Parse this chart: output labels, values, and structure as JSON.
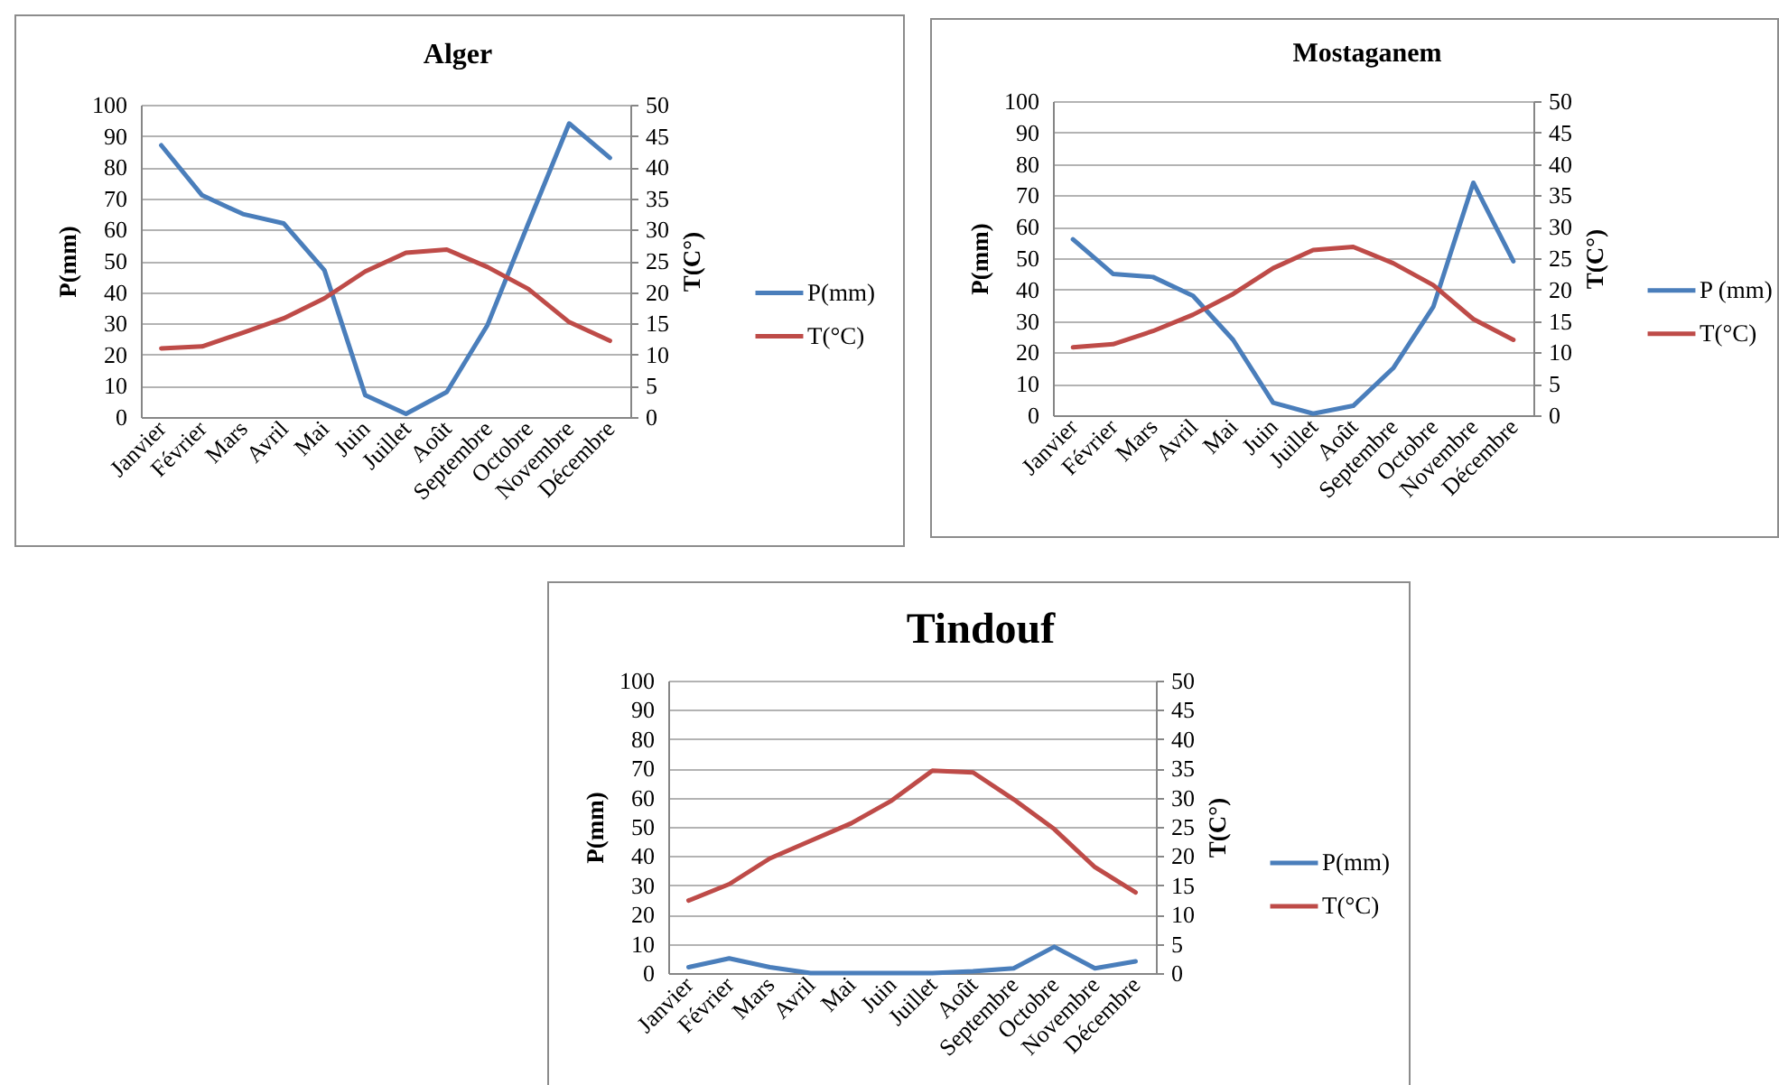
{
  "chart_data": [
    {
      "type": "line",
      "title": "Alger",
      "ylabel": "P(mm)",
      "y2label": "T(C°)",
      "categories": [
        "Janvier",
        "Février",
        "Mars",
        "Avril",
        "Mai",
        "Juin",
        "Juillet",
        "Août",
        "Septembre",
        "Octobre",
        "Novembre",
        "Décembre"
      ],
      "series": [
        {
          "name": "P(mm)",
          "color": "#4a7ebb",
          "values": [
            87,
            71,
            65,
            62,
            47,
            7,
            1,
            8,
            29.5,
            62,
            94,
            83
          ]
        },
        {
          "name": "T(°C)",
          "color": "#be4b48",
          "axis": "y2",
          "values": [
            11,
            11.3,
            13.5,
            15.8,
            19,
            23.3,
            26.3,
            26.8,
            24,
            20.5,
            15.2,
            12.2
          ]
        }
      ],
      "ylim": [
        0,
        100
      ],
      "yticks": [
        0,
        10,
        20,
        30,
        40,
        50,
        60,
        70,
        80,
        90,
        100
      ],
      "y2lim": [
        0,
        50
      ],
      "y2ticks": [
        0,
        5,
        10,
        15,
        20,
        25,
        30,
        35,
        40,
        45,
        50
      ],
      "grid": "y",
      "legend": "right"
    },
    {
      "type": "line",
      "title": "Mostaganem",
      "ylabel": "P(mm)",
      "y2label": "T(C°)",
      "categories": [
        "Janvier",
        "Février",
        "Mars",
        "Avril",
        "Mai",
        "Juin",
        "Juillet",
        "Août",
        "Septembre",
        "Octobre",
        "Novembre",
        "Décembre"
      ],
      "series": [
        {
          "name": "P (mm)",
          "color": "#4a7ebb",
          "values": [
            56,
            45,
            44,
            38,
            24,
            4,
            0.5,
            3,
            15,
            34.5,
            74,
            49
          ]
        },
        {
          "name": "T(°C)",
          "color": "#be4b48",
          "axis": "y2",
          "values": [
            10.8,
            11.3,
            13.4,
            16,
            19.3,
            23.4,
            26.3,
            26.8,
            24.2,
            20.7,
            15.3,
            12
          ]
        }
      ],
      "ylim": [
        0,
        100
      ],
      "yticks": [
        0,
        10,
        20,
        30,
        40,
        50,
        60,
        70,
        80,
        90,
        100
      ],
      "y2lim": [
        0,
        50
      ],
      "y2ticks": [
        0,
        5,
        10,
        15,
        20,
        25,
        30,
        35,
        40,
        45,
        50
      ],
      "grid": "y",
      "legend": "right"
    },
    {
      "type": "line",
      "title": "Tindouf",
      "ylabel": "P(mm)",
      "y2label": "T(C°)",
      "categories": [
        "Janvier",
        "Février",
        "Mars",
        "Avril",
        "Mai",
        "Juin",
        "Juillet",
        "Août",
        "Septembre",
        "Octobre",
        "Novembre",
        "Décembre"
      ],
      "series": [
        {
          "name": "P(mm)",
          "color": "#4a7ebb",
          "values": [
            2,
            5,
            2,
            0,
            0,
            0,
            0,
            0.6,
            1.6,
            9,
            1.6,
            4
          ]
        },
        {
          "name": "T(°C)",
          "color": "#be4b48",
          "axis": "y2",
          "values": [
            12.4,
            15.2,
            19.6,
            22.6,
            25.6,
            29.5,
            34.6,
            34.3,
            29.7,
            24.6,
            18.1,
            13.8
          ]
        }
      ],
      "ylim": [
        0,
        100
      ],
      "yticks": [
        0,
        10,
        20,
        30,
        40,
        50,
        60,
        70,
        80,
        90,
        100
      ],
      "y2lim": [
        0,
        50
      ],
      "y2ticks": [
        0,
        5,
        10,
        15,
        20,
        25,
        30,
        35,
        40,
        45,
        50
      ],
      "grid": "y",
      "legend": "right"
    }
  ]
}
